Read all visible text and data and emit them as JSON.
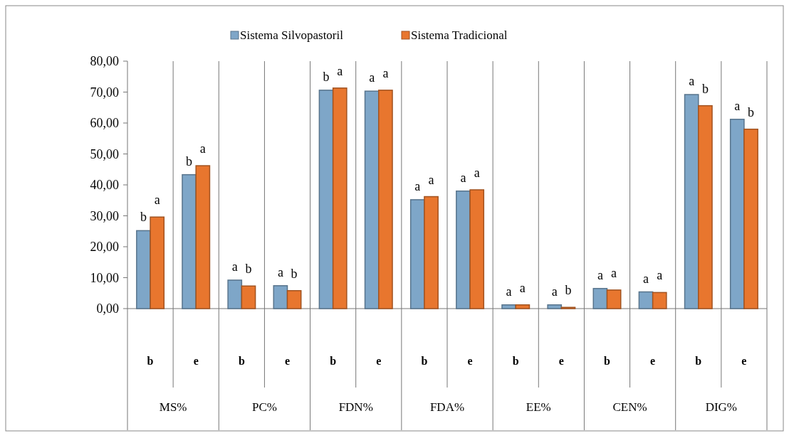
{
  "chart_data": {
    "type": "bar",
    "categories": [
      "b",
      "e",
      "b",
      "e",
      "b",
      "e",
      "b",
      "e",
      "b",
      "e",
      "b",
      "e",
      "b",
      "e"
    ],
    "annotations": [
      "MS%",
      "PC%",
      "FDN%",
      "FDA%",
      "EE%",
      "CEN%",
      "DIG%"
    ],
    "series": [
      {
        "name": "Sistema Silvopastoril",
        "color": "#7ea6c8",
        "values": [
          25.2,
          43.3,
          9.2,
          7.4,
          70.6,
          70.3,
          35.2,
          38.0,
          1.2,
          1.2,
          6.5,
          5.4,
          69.2,
          61.2
        ],
        "value_labels": [
          "b",
          "b",
          "a",
          "a",
          "b",
          "a",
          "a",
          "a",
          "a",
          "a",
          "a",
          "a",
          "a",
          "a"
        ]
      },
      {
        "name": "Sistema Tradicional",
        "color": "#e8762e",
        "values": [
          29.6,
          46.2,
          7.3,
          5.8,
          71.3,
          70.6,
          36.2,
          38.4,
          1.2,
          0.4,
          6.0,
          5.2,
          65.6,
          58.0
        ],
        "value_labels": [
          "a",
          "a",
          "b",
          "b",
          "a",
          "a",
          "a",
          "a",
          "a",
          "b",
          "a",
          "a",
          "b",
          "b"
        ]
      }
    ],
    "ylim": [
      0,
      80
    ],
    "yticks": [
      {
        "value": 0,
        "label": "0,00"
      },
      {
        "value": 10,
        "label": "10,00"
      },
      {
        "value": 20,
        "label": "20,00"
      },
      {
        "value": 30,
        "label": "30,00"
      },
      {
        "value": 40,
        "label": "40,00"
      },
      {
        "value": 50,
        "label": "50,00"
      },
      {
        "value": 60,
        "label": "60,00"
      },
      {
        "value": 70,
        "label": "70,00"
      },
      {
        "value": 80,
        "label": "80,00"
      }
    ],
    "grid": false,
    "legend": "top"
  }
}
